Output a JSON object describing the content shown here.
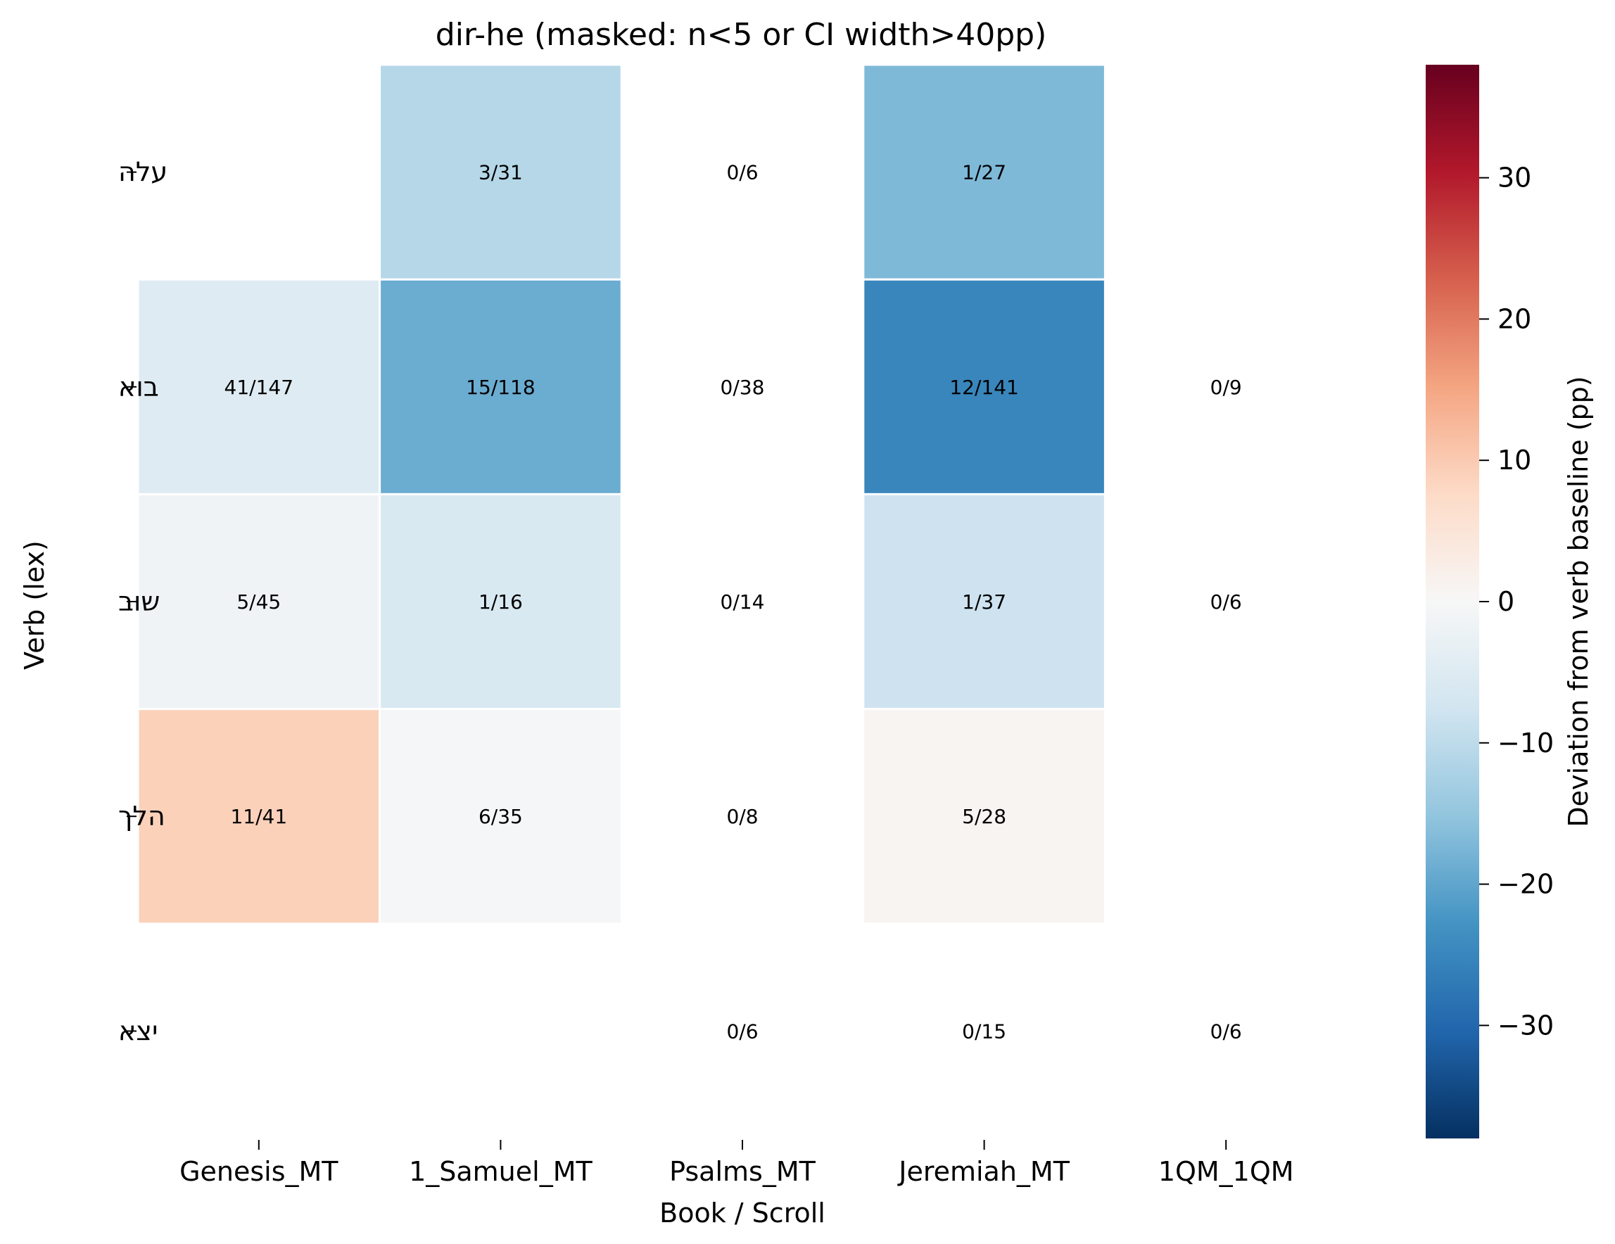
{
  "chart_data": {
    "type": "heatmap",
    "title": "dir-he (masked: n<5 or CI width>40pp)",
    "xlabel": "Book / Scroll",
    "ylabel": "Verb (lex)",
    "x_categories": [
      "Genesis_MT",
      "1_Samuel_MT",
      "Psalms_MT",
      "Jeremiah_MT",
      "1QM_1QM"
    ],
    "y_categories": [
      "עלה",
      "בוא",
      "שוב",
      "הלך",
      "יצא"
    ],
    "cells": [
      [
        {
          "value": null,
          "label": ""
        },
        {
          "value": -11,
          "label": "3/31"
        },
        {
          "value": null,
          "label": "0/6"
        },
        {
          "value": -17,
          "label": "1/27"
        },
        {
          "value": null,
          "label": ""
        }
      ],
      [
        {
          "value": -5,
          "label": "41/147"
        },
        {
          "value": -19,
          "label": "15/118"
        },
        {
          "value": null,
          "label": "0/38"
        },
        {
          "value": -25,
          "label": "12/141"
        },
        {
          "value": null,
          "label": "0/9"
        }
      ],
      [
        {
          "value": -1.5,
          "label": "5/45"
        },
        {
          "value": -6,
          "label": "1/16"
        },
        {
          "value": null,
          "label": "0/14"
        },
        {
          "value": -8,
          "label": "1/37"
        },
        {
          "value": null,
          "label": "0/6"
        }
      ],
      [
        {
          "value": 9,
          "label": "11/41"
        },
        {
          "value": -0.5,
          "label": "6/35"
        },
        {
          "value": null,
          "label": "0/8"
        },
        {
          "value": 0.8,
          "label": "5/28"
        },
        {
          "value": null,
          "label": ""
        }
      ],
      [
        {
          "value": null,
          "label": ""
        },
        {
          "value": null,
          "label": ""
        },
        {
          "value": null,
          "label": "0/6"
        },
        {
          "value": null,
          "label": "0/15"
        },
        {
          "value": null,
          "label": "0/6"
        }
      ]
    ],
    "colorbar": {
      "label": "Deviation from verb baseline (pp)",
      "colormap": "RdBu_r",
      "vmin": -38,
      "vmax": 38,
      "ticks": [
        30,
        20,
        10,
        0,
        -10,
        -20,
        -30
      ],
      "tick_labels": [
        "30",
        "20",
        "10",
        "0",
        "−10",
        "−20",
        "−30"
      ]
    },
    "grid": false,
    "legend": "colorbar-right"
  }
}
